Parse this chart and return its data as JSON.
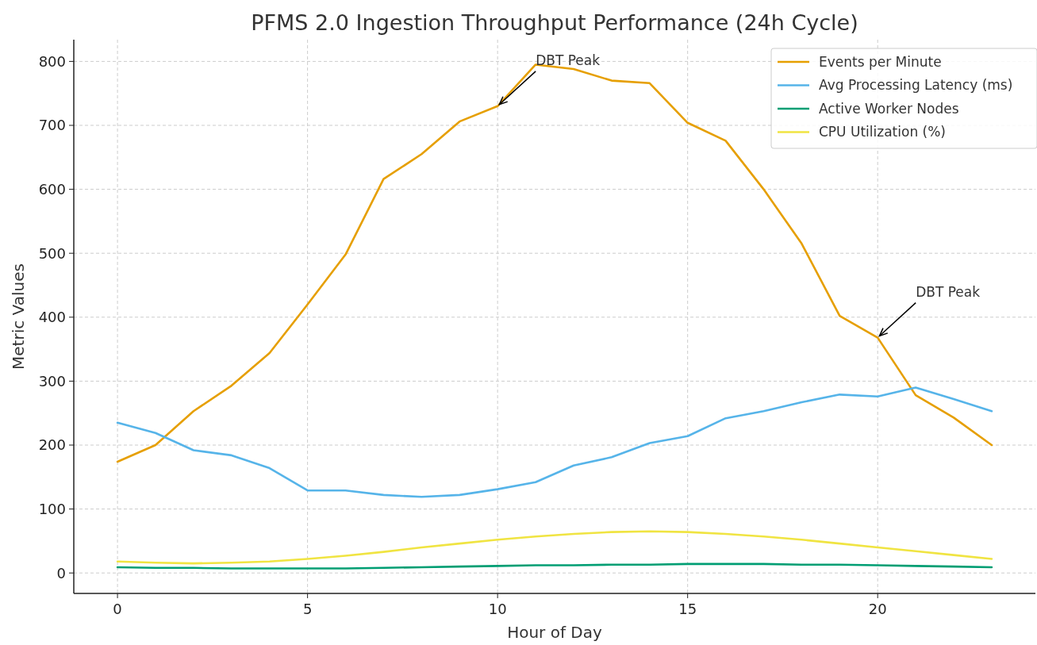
{
  "chart_data": {
    "type": "line",
    "title": "PFMS 2.0 Ingestion Throughput Performance (24h Cycle)",
    "xlabel": "Hour of Day",
    "ylabel": "Metric Values",
    "x": [
      0,
      1,
      2,
      3,
      4,
      5,
      6,
      7,
      8,
      9,
      10,
      11,
      12,
      13,
      14,
      15,
      16,
      17,
      18,
      19,
      20,
      21,
      22,
      23
    ],
    "series": [
      {
        "name": "Events per Minute",
        "color": "#e69f00",
        "values": [
          174,
          200,
          253,
          293,
          344,
          420,
          498,
          616,
          655,
          706,
          730,
          795,
          788,
          770,
          766,
          704,
          676,
          600,
          515,
          402,
          368,
          278,
          243,
          200
        ]
      },
      {
        "name": "Avg Processing Latency (ms)",
        "color": "#56b4e9",
        "values": [
          235,
          219,
          192,
          184,
          164,
          129,
          129,
          122,
          119,
          122,
          131,
          142,
          168,
          181,
          203,
          214,
          242,
          253,
          267,
          279,
          276,
          290,
          272,
          253
        ]
      },
      {
        "name": "Active Worker Nodes",
        "color": "#009e73",
        "values": [
          9,
          8,
          8,
          7,
          7,
          7,
          7,
          8,
          9,
          10,
          11,
          12,
          12,
          13,
          13,
          14,
          14,
          14,
          13,
          13,
          12,
          11,
          10,
          9
        ]
      },
      {
        "name": "CPU Utilization (%)",
        "color": "#f0e442",
        "values": [
          18,
          16,
          15,
          16,
          18,
          22,
          27,
          33,
          40,
          46,
          52,
          57,
          61,
          64,
          65,
          64,
          61,
          57,
          52,
          46,
          40,
          34,
          28,
          22
        ]
      }
    ],
    "annotations": [
      {
        "text": "DBT Peak",
        "x": 10,
        "y": 730
      },
      {
        "text": "DBT Peak",
        "x": 20,
        "y": 368
      }
    ],
    "xlim": [
      -1.15,
      24.15
    ],
    "xticks": [
      0,
      5,
      10,
      15,
      20
    ],
    "ylim": [
      -32,
      834
    ],
    "yticks": [
      0,
      100,
      200,
      300,
      400,
      500,
      600,
      700,
      800
    ],
    "grid": true,
    "legend": "top right",
    "line_style": "solid",
    "marker": "none"
  }
}
